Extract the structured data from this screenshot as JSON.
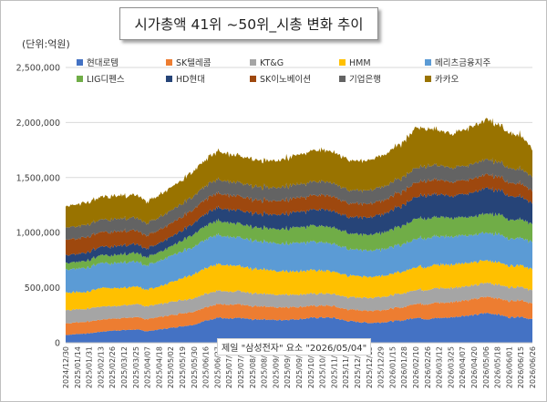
{
  "page": {
    "title": "시가총액 41위 ~50위_시총 변화 추이",
    "unit_label": "(단위:억원)",
    "watermark": "제일 \"삼성전자\" 요소 \"2026/05/04\""
  },
  "chart_data": {
    "type": "area",
    "stacked": true,
    "ylim": [
      0,
      2500000
    ],
    "yticks": [
      0,
      500000,
      1000000,
      1500000,
      2000000,
      2500000
    ],
    "ytick_labels": [
      "0",
      "500,000",
      "1,000,000",
      "1,500,000",
      "2,000,000",
      "2,500,000"
    ],
    "grid": true,
    "legend_position": "top",
    "x": [
      "2024/12/30",
      "2025/01/14",
      "2025/01/31",
      "2025/02/13",
      "2025/02/26",
      "2025/03/12",
      "2025/03/25",
      "2025/04/07",
      "2025/04/18",
      "2025/05/02",
      "2025/05/19",
      "2025/05/30",
      "2025/06/16",
      "2025/06/27",
      "2025/07/10",
      "2025/07/23",
      "2025/08/05",
      "2025/08/19",
      "2025/09/01",
      "2025/09/12",
      "2025/09/25",
      "2025/10/13",
      "2025/10/24",
      "2025/11/06",
      "2025/11/19",
      "2025/12/02",
      "2025/12/15",
      "2025/12/29",
      "2026/01/15",
      "2026/01/28",
      "2026/02/10",
      "2026/02/26",
      "2026/03/12",
      "2026/03/25",
      "2026/04/07",
      "2026/04/20",
      "2026/05/06",
      "2026/05/18",
      "2026/06/01",
      "2026/06/15",
      "2026/06/26"
    ],
    "series": [
      {
        "name": "현대로템",
        "color": "#4472c4",
        "values": [
          70000,
          80000,
          85000,
          100000,
          110000,
          115000,
          120000,
          105000,
          120000,
          135000,
          150000,
          165000,
          200000,
          230000,
          215000,
          225000,
          210000,
          215000,
          205000,
          210000,
          215000,
          225000,
          230000,
          225000,
          200000,
          190000,
          180000,
          185000,
          195000,
          205000,
          230000,
          215000,
          225000,
          230000,
          245000,
          250000,
          270000,
          260000,
          230000,
          240000,
          210000
        ]
      },
      {
        "name": "SK텔레콤",
        "color": "#ed7d31",
        "values": [
          105000,
          105000,
          108000,
          108000,
          110000,
          112000,
          112000,
          110000,
          112000,
          115000,
          118000,
          120000,
          122000,
          125000,
          125000,
          122000,
          120000,
          118000,
          115000,
          115000,
          112000,
          110000,
          108000,
          106000,
          105000,
          108000,
          110000,
          112000,
          115000,
          118000,
          130000,
          135000,
          140000,
          135000,
          140000,
          145000,
          150000,
          145000,
          148000,
          150000,
          145000
        ]
      },
      {
        "name": "KT&G",
        "color": "#a5a5a5",
        "values": [
          120000,
          120000,
          118000,
          118000,
          115000,
          115000,
          118000,
          116000,
          118000,
          120000,
          120000,
          122000,
          125000,
          122000,
          120000,
          118000,
          118000,
          116000,
          115000,
          115000,
          112000,
          112000,
          110000,
          110000,
          112000,
          115000,
          118000,
          120000,
          122000,
          125000,
          128000,
          130000,
          132000,
          130000,
          128000,
          126000,
          125000,
          124000,
          123000,
          122000,
          120000
        ]
      },
      {
        "name": "HMM",
        "color": "#ffc000",
        "values": [
          160000,
          155000,
          155000,
          170000,
          165000,
          160000,
          158000,
          150000,
          160000,
          175000,
          200000,
          220000,
          235000,
          240000,
          235000,
          230000,
          225000,
          220000,
          215000,
          215000,
          212000,
          210000,
          208000,
          205000,
          200000,
          195000,
          192000,
          190000,
          195000,
          200000,
          205000,
          210000,
          215000,
          212000,
          210000,
          208000,
          205000,
          200000,
          198000,
          195000,
          190000
        ]
      },
      {
        "name": "메리츠금융지주",
        "color": "#5b9bd5",
        "values": [
          210000,
          215000,
          220000,
          225000,
          225000,
          230000,
          225000,
          220000,
          230000,
          240000,
          245000,
          250000,
          260000,
          265000,
          260000,
          258000,
          255000,
          252000,
          250000,
          255000,
          258000,
          260000,
          255000,
          250000,
          245000,
          240000,
          238000,
          240000,
          245000,
          250000,
          255000,
          260000,
          258000,
          255000,
          252000,
          250000,
          255000,
          252000,
          250000,
          248000,
          245000
        ]
      },
      {
        "name": "LIG디펜스",
        "color": "#70ad47",
        "values": [
          60000,
          62000,
          65000,
          70000,
          72000,
          75000,
          78000,
          75000,
          80000,
          85000,
          100000,
          115000,
          125000,
          130000,
          128000,
          125000,
          122000,
          125000,
          128000,
          135000,
          140000,
          145000,
          150000,
          148000,
          145000,
          140000,
          145000,
          150000,
          160000,
          170000,
          185000,
          180000,
          175000,
          170000,
          168000,
          165000,
          175000,
          180000,
          175000,
          170000,
          160000
        ]
      },
      {
        "name": "HD현대",
        "color": "#264478",
        "values": [
          70000,
          72000,
          75000,
          78000,
          80000,
          82000,
          80000,
          78000,
          82000,
          86000,
          92000,
          100000,
          110000,
          118000,
          120000,
          122000,
          125000,
          128000,
          130000,
          135000,
          140000,
          145000,
          150000,
          148000,
          145000,
          150000,
          160000,
          165000,
          175000,
          185000,
          200000,
          210000,
          205000,
          200000,
          210000,
          220000,
          230000,
          225000,
          215000,
          205000,
          190000
        ]
      },
      {
        "name": "SK이노베이션",
        "color": "#9e480e",
        "values": [
          140000,
          140000,
          138000,
          135000,
          132000,
          130000,
          125000,
          118000,
          120000,
          122000,
          125000,
          128000,
          130000,
          132000,
          130000,
          128000,
          126000,
          125000,
          124000,
          126000,
          128000,
          130000,
          132000,
          130000,
          128000,
          126000,
          125000,
          124000,
          126000,
          128000,
          130000,
          132000,
          130000,
          128000,
          126000,
          125000,
          124000,
          122000,
          120000,
          118000,
          115000
        ]
      },
      {
        "name": "기업은행",
        "color": "#636363",
        "values": [
          110000,
          110000,
          112000,
          112000,
          114000,
          115000,
          115000,
          112000,
          114000,
          116000,
          118000,
          120000,
          122000,
          124000,
          124000,
          122000,
          122000,
          120000,
          120000,
          121000,
          122000,
          124000,
          124000,
          122000,
          120000,
          120000,
          122000,
          124000,
          126000,
          128000,
          132000,
          134000,
          132000,
          130000,
          132000,
          134000,
          136000,
          134000,
          132000,
          130000,
          128000
        ]
      },
      {
        "name": "카카오",
        "color": "#997300",
        "values": [
          195000,
          200000,
          205000,
          205000,
          210000,
          210000,
          205000,
          195000,
          205000,
          210000,
          215000,
          225000,
          240000,
          255000,
          250000,
          245000,
          245000,
          240000,
          245000,
          255000,
          265000,
          280000,
          290000,
          285000,
          275000,
          270000,
          275000,
          285000,
          300000,
          320000,
          365000,
          335000,
          320000,
          310000,
          330000,
          345000,
          360000,
          340000,
          320000,
          310000,
          250000
        ]
      }
    ]
  }
}
